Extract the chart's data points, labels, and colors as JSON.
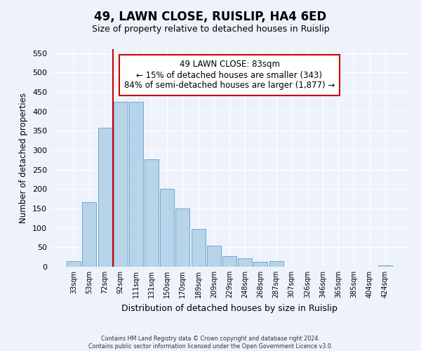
{
  "title": "49, LAWN CLOSE, RUISLIP, HA4 6ED",
  "subtitle": "Size of property relative to detached houses in Ruislip",
  "xlabel": "Distribution of detached houses by size in Ruislip",
  "ylabel": "Number of detached properties",
  "categories": [
    "33sqm",
    "53sqm",
    "72sqm",
    "92sqm",
    "111sqm",
    "131sqm",
    "150sqm",
    "170sqm",
    "189sqm",
    "209sqm",
    "229sqm",
    "248sqm",
    "268sqm",
    "287sqm",
    "307sqm",
    "326sqm",
    "346sqm",
    "365sqm",
    "385sqm",
    "404sqm",
    "424sqm"
  ],
  "values": [
    15,
    167,
    357,
    425,
    425,
    277,
    200,
    150,
    97,
    55,
    28,
    22,
    13,
    15,
    0,
    0,
    0,
    0,
    0,
    0,
    3
  ],
  "bar_color": "#b8d4e8",
  "bar_edge_color": "#6aaad4",
  "vline_x": 2.5,
  "vline_color": "#cc0000",
  "annotation_line1": "49 LAWN CLOSE: 83sqm",
  "annotation_line2": "← 15% of detached houses are smaller (343)",
  "annotation_line3": "84% of semi-detached houses are larger (1,877) →",
  "annotation_box_color": "#ffffff",
  "annotation_box_edge": "#cc0000",
  "ylim": [
    0,
    560
  ],
  "yticks": [
    0,
    50,
    100,
    150,
    200,
    250,
    300,
    350,
    400,
    450,
    500,
    550
  ],
  "footer_line1": "Contains HM Land Registry data © Crown copyright and database right 2024.",
  "footer_line2": "Contains public sector information licensed under the Open Government Licence v3.0.",
  "background_color": "#eef2fb",
  "plot_background": "#eef2fb",
  "grid_color": "#ffffff"
}
